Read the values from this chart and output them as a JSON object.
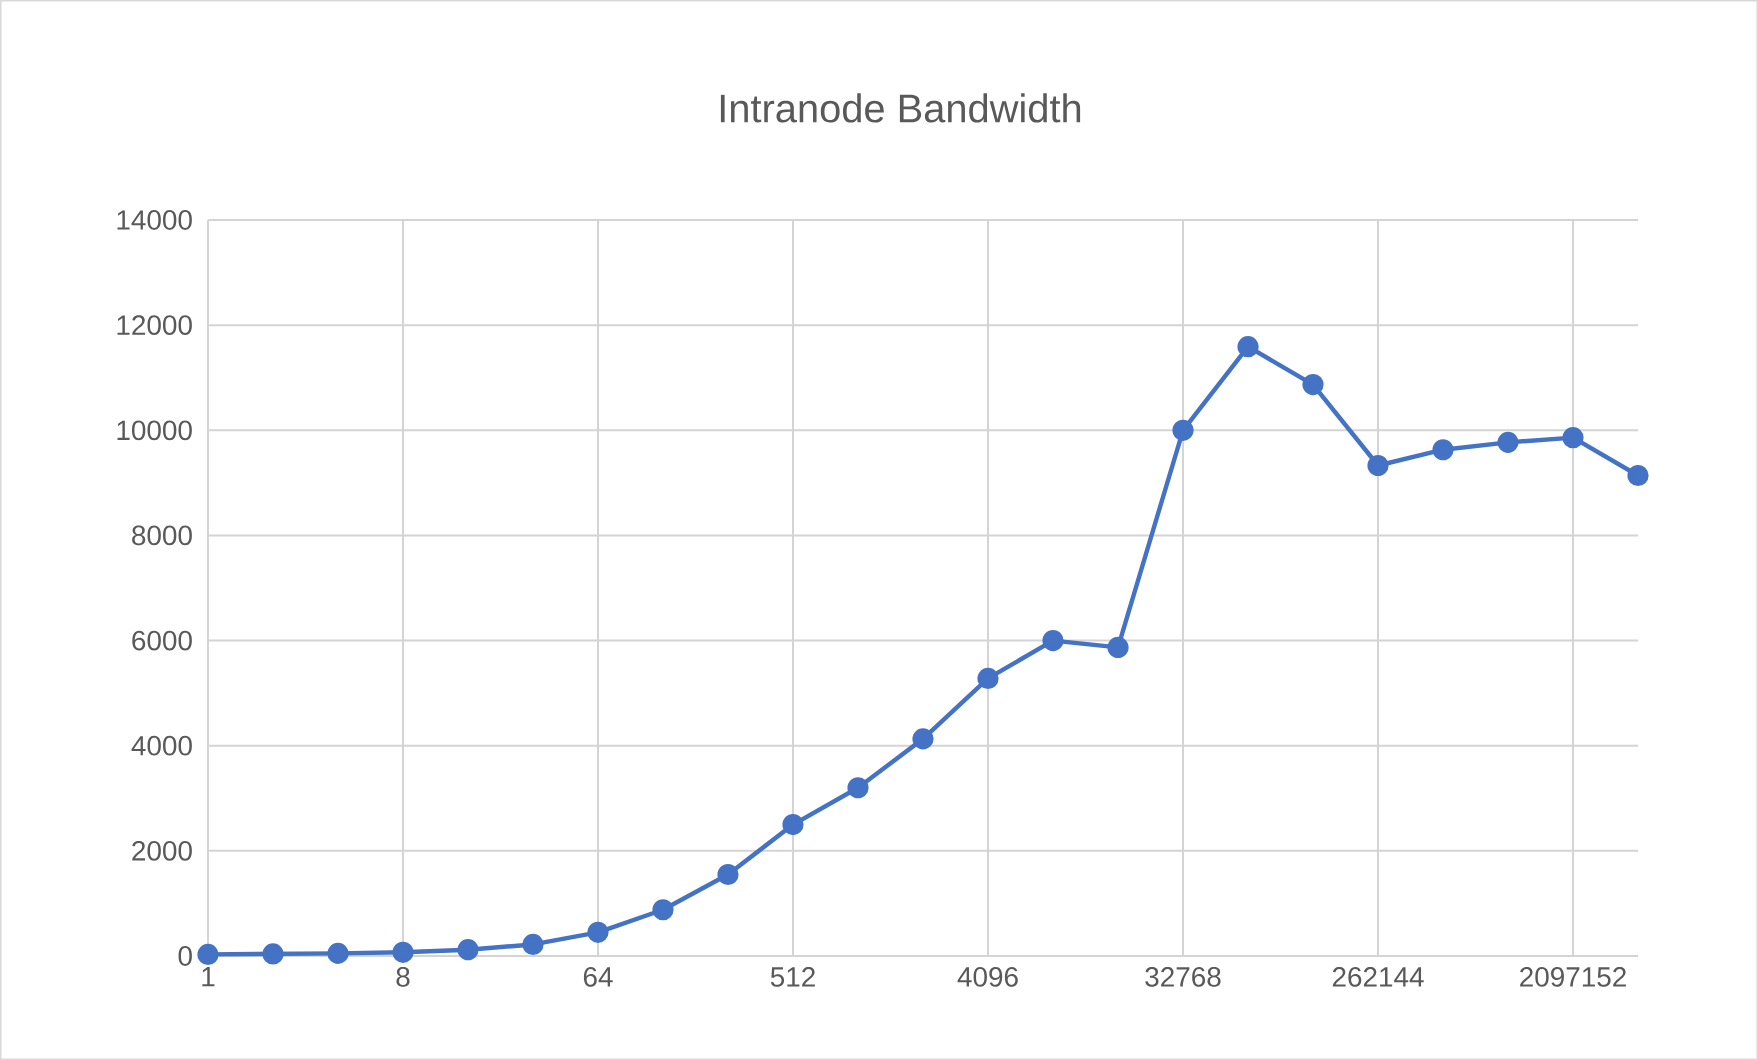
{
  "chart_data": {
    "type": "line",
    "title": "Intranode  Bandwidth",
    "categories": [
      "1",
      null,
      null,
      "8",
      null,
      null,
      "64",
      null,
      null,
      "512",
      null,
      null,
      "4096",
      null,
      null,
      "32768",
      null,
      null,
      "262144",
      null,
      null,
      "2097152",
      null
    ],
    "values": [
      30,
      40,
      50,
      70,
      120,
      220,
      450,
      880,
      1550,
      2500,
      3200,
      4130,
      5280,
      6000,
      5870,
      10000,
      11590,
      10870,
      9330,
      9630,
      9770,
      9860,
      9140
    ],
    "color": "#4472c4",
    "marker": "circle",
    "grid": true,
    "ylim": [
      0,
      14000
    ],
    "yticks": [
      0,
      2000,
      4000,
      6000,
      8000,
      10000,
      12000,
      14000
    ]
  }
}
